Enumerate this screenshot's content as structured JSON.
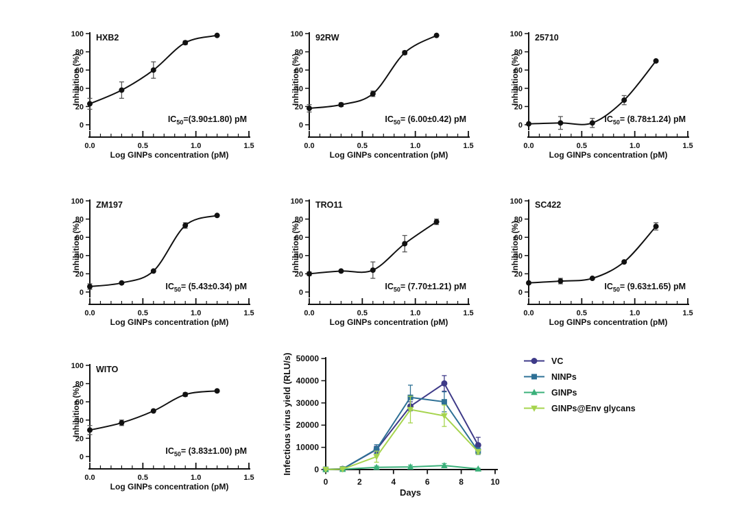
{
  "chart_data": [
    {
      "type": "scatter",
      "kind": "dose_response",
      "title": "HXB2",
      "xlabel": "Log GINPs concentration (pM)",
      "ylabel": "Inhibition (%)",
      "x": [
        0,
        0.3,
        0.6,
        0.9,
        1.2
      ],
      "y": [
        23,
        38,
        60,
        90,
        98
      ],
      "yerr": [
        6,
        9,
        9,
        2,
        0
      ],
      "xlim": [
        0,
        1.5
      ],
      "ylim": [
        0,
        100
      ],
      "xticks": [
        0,
        0.5,
        1,
        1.5
      ],
      "xtick_labels": [
        "0.0",
        "0.5",
        "1.0",
        "1.5"
      ],
      "yticks": [
        0,
        20,
        40,
        60,
        80,
        100
      ],
      "xminor_step": 0.1,
      "ic50_prefix": "IC",
      "ic50_sub": "50",
      "ic50_rest": "=(3.90±1.80) pM"
    },
    {
      "type": "scatter",
      "kind": "dose_response",
      "title": "92RW",
      "xlabel": "Log GINPs concentration (pM)",
      "ylabel": "Inhibition (%)",
      "x": [
        0,
        0.3,
        0.6,
        0.9,
        1.2
      ],
      "y": [
        18,
        22,
        34,
        79,
        98
      ],
      "yerr": [
        4,
        2,
        3,
        2,
        0
      ],
      "xlim": [
        0,
        1.5
      ],
      "ylim": [
        0,
        100
      ],
      "xticks": [
        0,
        0.5,
        1,
        1.5
      ],
      "xtick_labels": [
        "0.0",
        "0.5",
        "1.0",
        "1.5"
      ],
      "yticks": [
        0,
        20,
        40,
        60,
        80,
        100
      ],
      "xminor_step": 0.1,
      "ic50_prefix": "IC",
      "ic50_sub": "50",
      "ic50_rest": "= (6.00±0.42) pM"
    },
    {
      "type": "scatter",
      "kind": "dose_response",
      "title": "25710",
      "xlabel": "Log GINPs concentration (pM)",
      "ylabel": "Inhibition (%)",
      "x": [
        0,
        0.3,
        0.6,
        0.9,
        1.2
      ],
      "y": [
        1,
        2,
        2,
        27,
        70
      ],
      "yerr": [
        1,
        7,
        5,
        5,
        0
      ],
      "xlim": [
        0,
        1.5
      ],
      "ylim": [
        0,
        100
      ],
      "xticks": [
        0,
        0.5,
        1,
        1.5
      ],
      "xtick_labels": [
        "0.0",
        "0.5",
        "1.0",
        "1.5"
      ],
      "yticks": [
        0,
        20,
        40,
        60,
        80,
        100
      ],
      "xminor_step": 0.1,
      "ic50_prefix": "IC",
      "ic50_sub": "50",
      "ic50_rest": "= (8.78±1.24) pM"
    },
    {
      "type": "scatter",
      "kind": "dose_response",
      "title": "ZM197",
      "xlabel": "Log GINPs concentration (pM)",
      "ylabel": "Inhibition (%)",
      "x": [
        0,
        0.3,
        0.6,
        0.9,
        1.2
      ],
      "y": [
        6,
        10,
        23,
        73,
        84
      ],
      "yerr": [
        3,
        1,
        1,
        3,
        0
      ],
      "xlim": [
        0,
        1.5
      ],
      "ylim": [
        0,
        100
      ],
      "xticks": [
        0,
        0.5,
        1,
        1.5
      ],
      "xtick_labels": [
        "0.0",
        "0.5",
        "1.0",
        "1.5"
      ],
      "yticks": [
        0,
        20,
        40,
        60,
        80,
        100
      ],
      "xminor_step": 0.1,
      "ic50_prefix": "IC",
      "ic50_sub": "50",
      "ic50_rest": "= (5.43±0.34) pM"
    },
    {
      "type": "scatter",
      "kind": "dose_response",
      "title": "TRO11",
      "xlabel": "Log GINPs concentration (pM)",
      "ylabel": "Inhibition (%)",
      "x": [
        0,
        0.3,
        0.6,
        0.9,
        1.2
      ],
      "y": [
        20,
        23,
        24,
        53,
        77
      ],
      "yerr": [
        2,
        1,
        9,
        9,
        3
      ],
      "xlim": [
        0,
        1.5
      ],
      "ylim": [
        0,
        100
      ],
      "xticks": [
        0,
        0.5,
        1,
        1.5
      ],
      "xtick_labels": [
        "0.0",
        "0.5",
        "1.0",
        "1.5"
      ],
      "yticks": [
        0,
        20,
        40,
        60,
        80,
        100
      ],
      "xminor_step": 0.1,
      "ic50_prefix": "IC",
      "ic50_sub": "50",
      "ic50_rest": "= (7.70±1.21) pM"
    },
    {
      "type": "scatter",
      "kind": "dose_response",
      "title": "SC422",
      "xlabel": "Log GINPs concentration (pM)",
      "ylabel": "Inhibition (%)",
      "x": [
        0,
        0.3,
        0.6,
        0.9,
        1.2
      ],
      "y": [
        10,
        12,
        15,
        33,
        72
      ],
      "yerr": [
        1,
        3,
        1,
        1,
        4
      ],
      "xlim": [
        0,
        1.5
      ],
      "ylim": [
        0,
        100
      ],
      "xticks": [
        0,
        0.5,
        1,
        1.5
      ],
      "xtick_labels": [
        "0.0",
        "0.5",
        "1.0",
        "1.5"
      ],
      "yticks": [
        0,
        20,
        40,
        60,
        80,
        100
      ],
      "xminor_step": 0.1,
      "ic50_prefix": "IC",
      "ic50_sub": "50",
      "ic50_rest": "= (9.63±1.65) pM"
    },
    {
      "type": "scatter",
      "kind": "dose_response",
      "title": "WITO",
      "xlabel": "Log GINPs concentration (pM)",
      "ylabel": "Inhibition (%)",
      "x": [
        0,
        0.3,
        0.6,
        0.9,
        1.2
      ],
      "y": [
        29,
        37,
        50,
        68,
        72
      ],
      "yerr": [
        5,
        3,
        1,
        2,
        1
      ],
      "xlim": [
        0,
        1.5
      ],
      "ylim": [
        0,
        100
      ],
      "xticks": [
        0,
        0.5,
        1,
        1.5
      ],
      "xtick_labels": [
        "0.0",
        "0.5",
        "1.0",
        "1.5"
      ],
      "yticks": [
        0,
        20,
        40,
        60,
        80,
        100
      ],
      "xminor_step": 0.1,
      "ic50_prefix": "IC",
      "ic50_sub": "50",
      "ic50_rest": "= (3.83±1.00) pM"
    },
    {
      "type": "line",
      "kind": "time_course",
      "title": "",
      "xlabel": "Days",
      "ylabel": "Infectious virus yield (RLU/s)",
      "x": [
        0,
        1,
        3,
        5,
        7,
        9
      ],
      "series": [
        {
          "name": "VC",
          "color": "#3e3a88",
          "marker": "circle",
          "values": [
            100,
            300,
            9000,
            28500,
            38800,
            11000
          ],
          "yerr": [
            0,
            0,
            1500,
            2000,
            3500,
            3500
          ]
        },
        {
          "name": "NINPs",
          "color": "#2e7095",
          "marker": "square",
          "values": [
            100,
            300,
            9200,
            32500,
            30500,
            8300
          ],
          "yerr": [
            0,
            0,
            2000,
            5500,
            4500,
            1500
          ]
        },
        {
          "name": "GINPs",
          "color": "#3bb07a",
          "marker": "triangle-up",
          "values": [
            50,
            150,
            1000,
            1200,
            1800,
            300
          ],
          "yerr": [
            0,
            0,
            600,
            800,
            900,
            300
          ]
        },
        {
          "name": "GINPs@Env glycans",
          "color": "#a6d44e",
          "marker": "triangle-down",
          "values": [
            50,
            200,
            5800,
            27000,
            24200,
            8000
          ],
          "yerr": [
            0,
            0,
            2500,
            6000,
            4800,
            1000
          ]
        }
      ],
      "xlim": [
        0,
        10
      ],
      "ylim": [
        0,
        50000
      ],
      "xticks": [
        0,
        2,
        4,
        6,
        8,
        10
      ],
      "yticks": [
        0,
        10000,
        20000,
        30000,
        40000,
        50000
      ],
      "ytick_labels": [
        "0",
        "10000",
        "20000",
        "30000",
        "40000",
        "50000"
      ],
      "legend_position": "right"
    }
  ]
}
